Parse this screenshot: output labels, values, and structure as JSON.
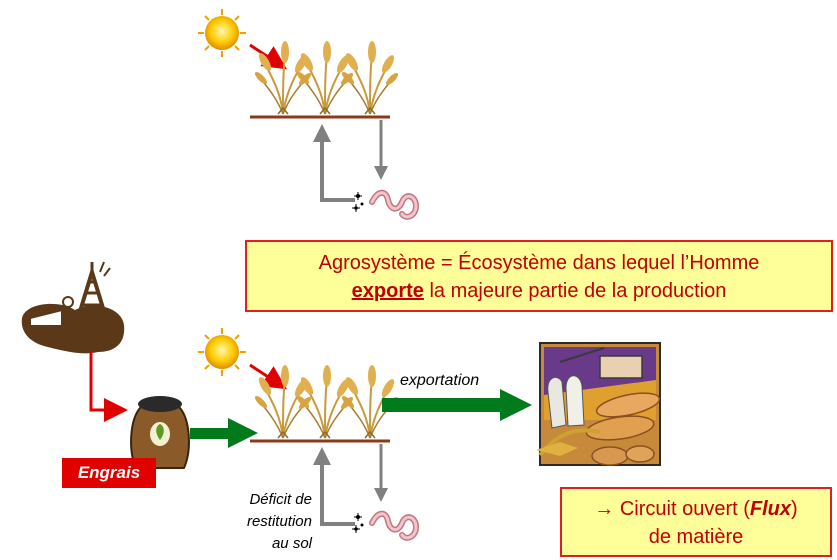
{
  "definition": {
    "line1": "Agrosystème = Écosystème dans lequel l’Homme",
    "emphasis": "exporte",
    "line2_rest": " la majeure partie de la production"
  },
  "labels": {
    "engrais": "Engrais",
    "exportation": "exportation",
    "deficit_line1": "Déficit de",
    "deficit_line2": "restitution",
    "deficit_line3": "au sol"
  },
  "conclusion": {
    "prefix": "→ Circuit ouvert (",
    "flux": "Flux",
    "suffix": ")",
    "line2": "de matière"
  },
  "icons": [
    "sun-icon",
    "wheat-icon",
    "worm-icon",
    "oil-well-icon",
    "fertilizer-bag-icon",
    "food-harvest-icon"
  ],
  "colors": {
    "box_fill": "#ffff99",
    "box_border": "#e02020",
    "box_text": "#c00000",
    "label_red": "#e00000",
    "flow_green": "#007a1a",
    "cycle_gray": "#7f7f7f",
    "sun_yellow": "#ffcc00",
    "soil_brown": "#8b3a1a"
  }
}
